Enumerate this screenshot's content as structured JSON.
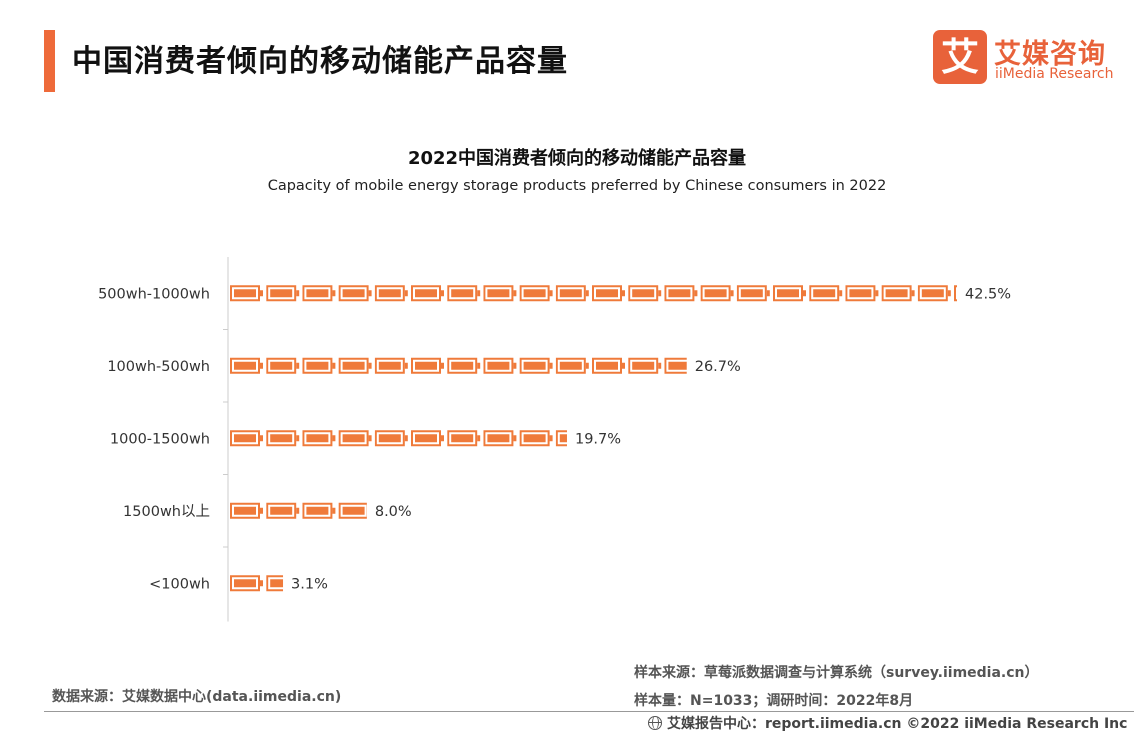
{
  "header": {
    "title": "中国消费者倾向的移动储能产品容量",
    "logo_mark": "艾",
    "logo_cn": "艾媒咨询",
    "logo_en": "iiMedia Research"
  },
  "colors": {
    "accent": "#ee6a3a",
    "battery": "#ef7a3a",
    "axis": "#cccccc"
  },
  "chart_data": {
    "type": "bar",
    "orientation": "horizontal",
    "mark": "battery-icon pictograph",
    "title": "2022中国消费者倾向的移动储能产品容量",
    "subtitle": "Capacity of mobile energy storage products preferred by Chinese consumers in 2022",
    "categories": [
      "500wh-1000wh",
      "100wh-500wh",
      "1000-1500wh",
      "1500wh以上",
      "<100wh"
    ],
    "values": [
      42.5,
      26.7,
      19.7,
      8.0,
      3.1
    ],
    "value_labels": [
      "42.5%",
      "26.7%",
      "19.7%",
      "8.0%",
      "3.1%"
    ],
    "unit": "%",
    "xlim": [
      0,
      42.5
    ],
    "grid": false,
    "legend": "none"
  },
  "footer": {
    "source_left": "数据来源：艾媒数据中心(data.iimedia.cn)",
    "sample_source": "样本来源：草莓派数据调查与计算系统（survey.iimedia.cn）",
    "sample_size": "样本量：N=1033；调研时间：2022年8月",
    "bottom_bar": "艾媒报告中心：report.iimedia.cn  ©2022  iiMedia Research  Inc"
  }
}
